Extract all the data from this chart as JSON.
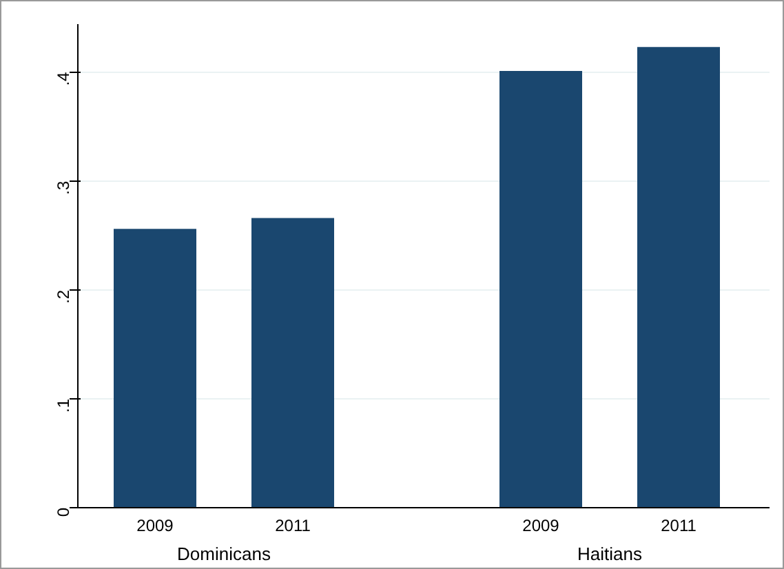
{
  "chart_data": {
    "type": "bar",
    "categories": [
      "2009",
      "2011",
      "2009",
      "2011"
    ],
    "values": [
      0.256,
      0.266,
      0.401,
      0.423
    ],
    "color": "#1a476f",
    "ylim": [
      0,
      0.444
    ],
    "yticks": [
      {
        "value": 0,
        "label": "0"
      },
      {
        "value": 0.1,
        "label": ".1"
      },
      {
        "value": 0.2,
        "label": ".2"
      },
      {
        "value": 0.3,
        "label": ".3"
      },
      {
        "value": 0.4,
        "label": ".4"
      }
    ],
    "grid": "y",
    "annotations": [
      "Dominicans",
      "Haitians"
    ]
  }
}
